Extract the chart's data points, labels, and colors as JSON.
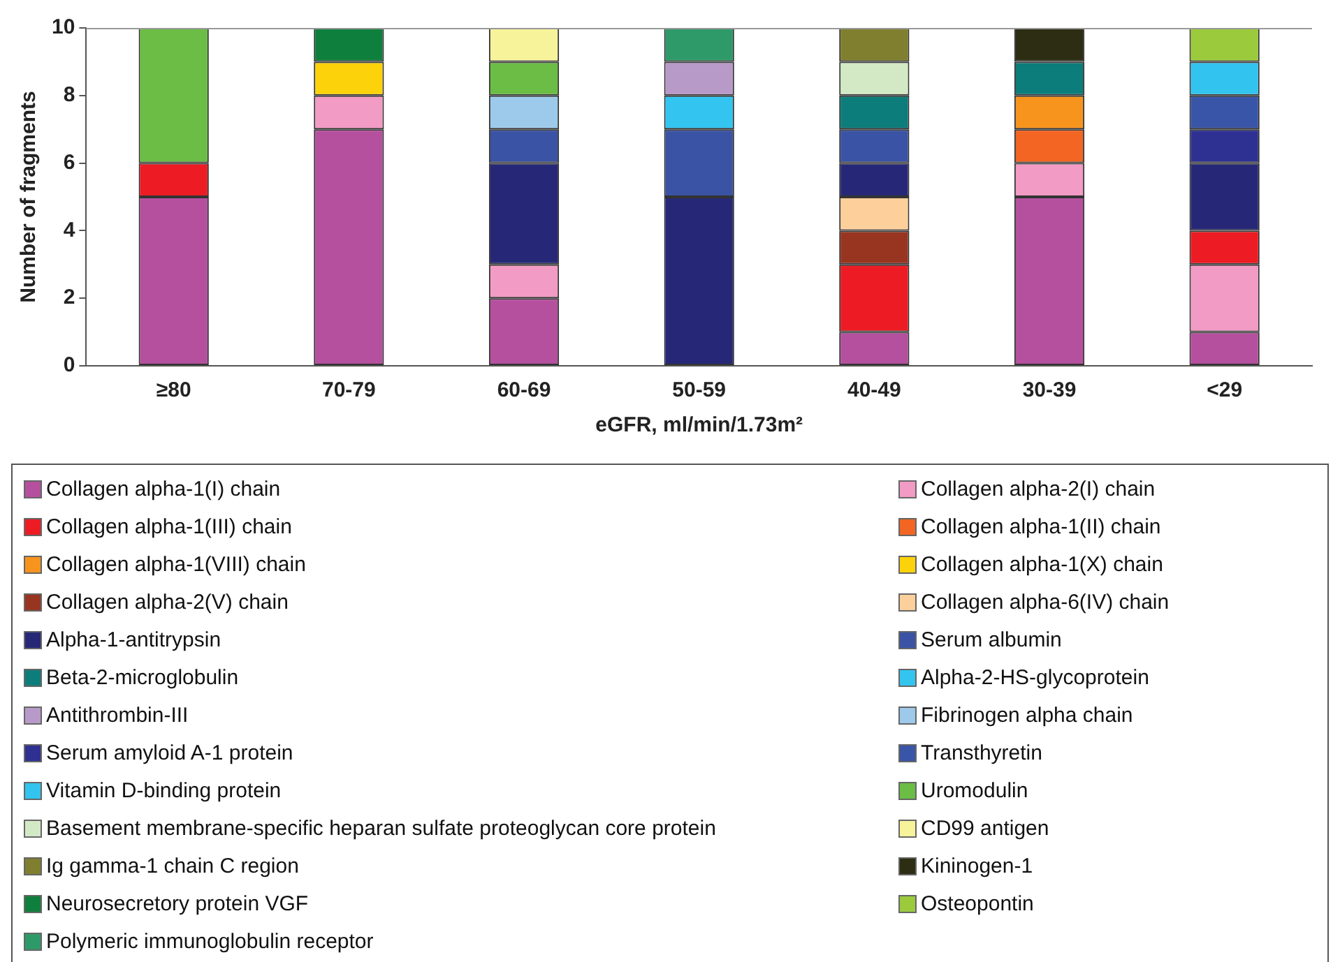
{
  "chart_data": {
    "type": "bar",
    "stacked": true,
    "xlabel": "eGFR, ml/min/1.73m²",
    "ylabel": "Number of fragments",
    "categories": [
      "≥80",
      "70-79",
      "60-69",
      "50-59",
      "40-49",
      "30-39",
      "<29"
    ],
    "ylim": [
      0,
      10
    ],
    "yticks": [
      0,
      2,
      4,
      6,
      8,
      10
    ],
    "grid": false,
    "legend": "bottom",
    "series": [
      {
        "name": "Collagen alpha-1(I) chain",
        "color": "#b5509e",
        "values": [
          5,
          7,
          2,
          0,
          1,
          5,
          1
        ]
      },
      {
        "name": "Collagen alpha-2(I) chain",
        "color": "#f29bc4",
        "values": [
          0,
          1,
          1,
          0,
          0,
          1,
          2
        ]
      },
      {
        "name": "Collagen alpha-1(III) chain",
        "color": "#ed1c24",
        "values": [
          1,
          0,
          0,
          0,
          2,
          0,
          1
        ]
      },
      {
        "name": "Collagen alpha-1(II) chain",
        "color": "#f26522",
        "values": [
          0,
          0,
          0,
          0,
          0,
          1,
          0
        ]
      },
      {
        "name": "Collagen alpha-1(VIII) chain",
        "color": "#f7941d",
        "values": [
          0,
          0,
          0,
          0,
          0,
          1,
          0
        ]
      },
      {
        "name": "Collagen alpha-1(X) chain",
        "color": "#fcd20a",
        "values": [
          0,
          1,
          0,
          0,
          0,
          0,
          0
        ]
      },
      {
        "name": "Collagen alpha-2(V) chain",
        "color": "#983520",
        "values": [
          0,
          0,
          0,
          0,
          1,
          0,
          0
        ]
      },
      {
        "name": "Collagen alpha-6(IV) chain",
        "color": "#fccf9b",
        "values": [
          0,
          0,
          0,
          0,
          1,
          0,
          0
        ]
      },
      {
        "name": "Alpha-1-antitrypsin",
        "color": "#262877",
        "values": [
          0,
          0,
          3,
          5,
          1,
          0,
          2
        ]
      },
      {
        "name": "Serum albumin",
        "color": "#3a53a4",
        "values": [
          0,
          0,
          1,
          2,
          1,
          0,
          0
        ]
      },
      {
        "name": "Beta-2-microglobulin",
        "color": "#0d7d7b",
        "values": [
          0,
          0,
          0,
          0,
          1,
          1,
          0
        ]
      },
      {
        "name": "Alpha-2-HS-glycoprotein",
        "color": "#33c5f0",
        "values": [
          0,
          0,
          0,
          1,
          0,
          0,
          0
        ]
      },
      {
        "name": "Antithrombin-III",
        "color": "#b89ac9",
        "values": [
          0,
          0,
          0,
          1,
          0,
          0,
          0
        ]
      },
      {
        "name": "Fibrinogen alpha chain",
        "color": "#9dcaeb",
        "values": [
          0,
          0,
          1,
          0,
          0,
          0,
          0
        ]
      },
      {
        "name": "Serum amyloid A-1 protein",
        "color": "#2e3192",
        "values": [
          0,
          0,
          0,
          0,
          0,
          0,
          1
        ]
      },
      {
        "name": "Transthyretin",
        "color": "#3955a8",
        "values": [
          0,
          0,
          0,
          0,
          0,
          0,
          1
        ]
      },
      {
        "name": "Vitamin D-binding protein",
        "color": "#32c3ee",
        "values": [
          0,
          0,
          0,
          0,
          0,
          0,
          1
        ]
      },
      {
        "name": "Uromodulin",
        "color": "#6bbd45",
        "values": [
          4,
          0,
          1,
          0,
          0,
          0,
          0
        ]
      },
      {
        "name": "Basement membrane-specific heparan sulfate proteoglycan core protein",
        "color": "#d3e9c6",
        "values": [
          0,
          0,
          0,
          0,
          1,
          0,
          0
        ]
      },
      {
        "name": "CD99 antigen",
        "color": "#f7f39b",
        "values": [
          0,
          0,
          1,
          0,
          0,
          0,
          0
        ]
      },
      {
        "name": "Ig gamma-1 chain C region",
        "color": "#7f7f2f",
        "values": [
          0,
          0,
          0,
          0,
          1,
          0,
          0
        ]
      },
      {
        "name": "Kininogen-1",
        "color": "#2d2d14",
        "values": [
          0,
          0,
          0,
          0,
          0,
          1,
          0
        ]
      },
      {
        "name": "Neurosecretory protein VGF",
        "color": "#0f7f3d",
        "values": [
          0,
          1,
          0,
          0,
          0,
          0,
          0
        ]
      },
      {
        "name": "Osteopontin",
        "color": "#9bca3d",
        "values": [
          0,
          0,
          0,
          0,
          0,
          0,
          1
        ]
      },
      {
        "name": "Polymeric immunoglobulin receptor",
        "color": "#2f9a69",
        "values": [
          0,
          0,
          0,
          1,
          0,
          0,
          0
        ]
      }
    ]
  }
}
